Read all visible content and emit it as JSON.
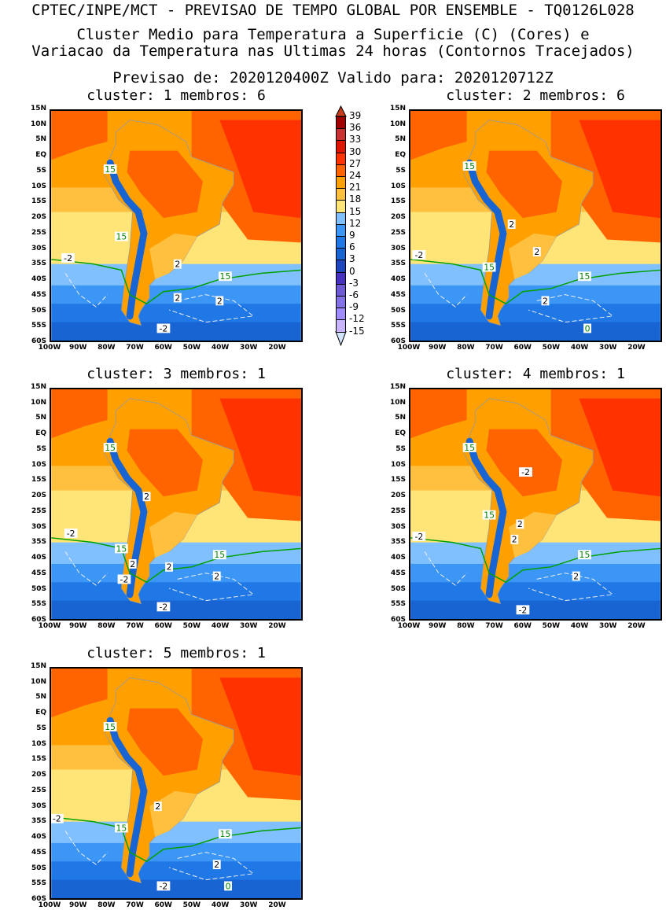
{
  "header": {
    "line1": "CPTEC/INPE/MCT - PREVISAO DE TEMPO GLOBAL POR ENSEMBLE - TQ0126L028",
    "line2": "Cluster Medio para Temperatura a Superficie (C) (Cores) e",
    "line3": "Variacao da Temperatura nas Ultimas 24 horas (Contornos Tracejados)",
    "line4": "Previsao de: 2020120400Z   Valido para: 2020120712Z"
  },
  "y_ticks": [
    "15N",
    "10N",
    "5N",
    "EQ",
    "5S",
    "10S",
    "15S",
    "20S",
    "25S",
    "30S",
    "35S",
    "40S",
    "45S",
    "50S",
    "55S",
    "60S"
  ],
  "x_ticks": [
    "100W",
    "90W",
    "80W",
    "70W",
    "60W",
    "50W",
    "40W",
    "30W",
    "20W"
  ],
  "panels": [
    {
      "title": "cluster: 1   membros: 6",
      "labels": [
        {
          "t": "15",
          "lon": -79,
          "lat": -4,
          "c": "g"
        },
        {
          "t": "15",
          "lon": -75,
          "lat": -26,
          "c": "g"
        },
        {
          "t": "15",
          "lon": -38,
          "lat": -39,
          "c": "g"
        },
        {
          "t": "-2",
          "lon": -94,
          "lat": -33,
          "c": "w"
        },
        {
          "t": "2",
          "lon": -55,
          "lat": -35,
          "c": "w"
        },
        {
          "t": "2",
          "lon": -55,
          "lat": -46,
          "c": "w"
        },
        {
          "t": "2",
          "lon": -40,
          "lat": -47,
          "c": "w"
        },
        {
          "t": "-2",
          "lon": -60,
          "lat": -56,
          "c": "w"
        }
      ]
    },
    {
      "title": "cluster: 2   membros: 6",
      "labels": [
        {
          "t": "15",
          "lon": -79,
          "lat": -3,
          "c": "g"
        },
        {
          "t": "15",
          "lon": -72,
          "lat": -36,
          "c": "g"
        },
        {
          "t": "15",
          "lon": -38,
          "lat": -39,
          "c": "g"
        },
        {
          "t": "-2",
          "lon": -97,
          "lat": -32,
          "c": "w"
        },
        {
          "t": "2",
          "lon": -64,
          "lat": -22,
          "c": "w"
        },
        {
          "t": "2",
          "lon": -55,
          "lat": -31,
          "c": "w"
        },
        {
          "t": "2",
          "lon": -52,
          "lat": -47,
          "c": "w"
        },
        {
          "t": "0",
          "lon": -37,
          "lat": -56,
          "c": "g"
        }
      ]
    },
    {
      "title": "cluster: 3   membros: 1",
      "labels": [
        {
          "t": "15",
          "lon": -79,
          "lat": -4,
          "c": "g"
        },
        {
          "t": "15",
          "lon": -75,
          "lat": -37,
          "c": "g"
        },
        {
          "t": "15",
          "lon": -40,
          "lat": -39,
          "c": "g"
        },
        {
          "t": "-2",
          "lon": -93,
          "lat": -32,
          "c": "w"
        },
        {
          "t": "2",
          "lon": -66,
          "lat": -20,
          "c": "w"
        },
        {
          "t": "2",
          "lon": -71,
          "lat": -42,
          "c": "w"
        },
        {
          "t": "2",
          "lon": -58,
          "lat": -43,
          "c": "w"
        },
        {
          "t": "2",
          "lon": -41,
          "lat": -46,
          "c": "w"
        },
        {
          "t": "-2",
          "lon": -74,
          "lat": -47,
          "c": "w"
        },
        {
          "t": "-2",
          "lon": -60,
          "lat": -56,
          "c": "w"
        }
      ]
    },
    {
      "title": "cluster: 4   membros: 1",
      "labels": [
        {
          "t": "15",
          "lon": -79,
          "lat": -4,
          "c": "g"
        },
        {
          "t": "15",
          "lon": -72,
          "lat": -26,
          "c": "g"
        },
        {
          "t": "15",
          "lon": -38,
          "lat": -39,
          "c": "g"
        },
        {
          "t": "-2",
          "lon": -97,
          "lat": -33,
          "c": "w"
        },
        {
          "t": "-2",
          "lon": -59,
          "lat": -12,
          "c": "w"
        },
        {
          "t": "2",
          "lon": -61,
          "lat": -29,
          "c": "w"
        },
        {
          "t": "2",
          "lon": -63,
          "lat": -34,
          "c": "w"
        },
        {
          "t": "2",
          "lon": -41,
          "lat": -46,
          "c": "w"
        },
        {
          "t": "-2",
          "lon": -60,
          "lat": -57,
          "c": "w"
        }
      ]
    },
    {
      "title": "cluster: 5   membros: 1",
      "labels": [
        {
          "t": "15",
          "lon": -79,
          "lat": -4,
          "c": "g"
        },
        {
          "t": "15",
          "lon": -75,
          "lat": -37,
          "c": "g"
        },
        {
          "t": "15",
          "lon": -38,
          "lat": -39,
          "c": "g"
        },
        {
          "t": "-2",
          "lon": -98,
          "lat": -34,
          "c": "w"
        },
        {
          "t": "2",
          "lon": -62,
          "lat": -30,
          "c": "w"
        },
        {
          "t": "2",
          "lon": -41,
          "lat": -49,
          "c": "w"
        },
        {
          "t": "-2",
          "lon": -60,
          "lat": -56,
          "c": "w"
        },
        {
          "t": "0",
          "lon": -37,
          "lat": -56,
          "c": "g"
        }
      ]
    }
  ],
  "colorbar": {
    "levels": [
      "39",
      "36",
      "33",
      "30",
      "27",
      "24",
      "21",
      "18",
      "15",
      "12",
      "9",
      "6",
      "3",
      "0",
      "-3",
      "-6",
      "-9",
      "-12",
      "-15"
    ],
    "colors": [
      "#a00000",
      "#c83232",
      "#dc1400",
      "#ff3200",
      "#ff6400",
      "#ffa000",
      "#ffc040",
      "#ffe478",
      "#80c0ff",
      "#3c96f5",
      "#2078e6",
      "#1864d2",
      "#1e46be",
      "#4632be",
      "#6e5ad2",
      "#8272e6",
      "#a08cff",
      "#c8b4ff",
      "#d2e4ff"
    ],
    "over": "#c83c1e"
  }
}
